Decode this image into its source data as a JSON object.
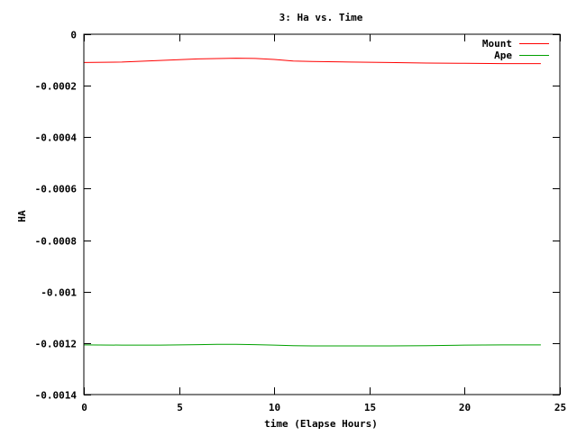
{
  "chart_data": {
    "type": "line",
    "title": "3: Ha vs. Time",
    "xlabel": "time (Elapse Hours)",
    "ylabel": "HA",
    "xlim": [
      0,
      25
    ],
    "ylim": [
      -0.0014,
      0
    ],
    "xticks": [
      0,
      5,
      10,
      15,
      20,
      25
    ],
    "xtick_labels": [
      "0",
      "5",
      "10",
      "15",
      "20",
      "25"
    ],
    "yticks": [
      0,
      -0.0002,
      -0.0004,
      -0.0006,
      -0.0008,
      -0.001,
      -0.0012,
      -0.0014
    ],
    "ytick_labels": [
      "0",
      "-0.0002",
      "-0.0004",
      "-0.0006",
      "-0.0008",
      "-0.001",
      "-0.0012",
      "-0.0014"
    ],
    "grid": false,
    "legend_position": "top-right",
    "series": [
      {
        "name": "Mount",
        "color": "#ff0000",
        "x": [
          0,
          2,
          4,
          6,
          8,
          9,
          10,
          11,
          12,
          14,
          16,
          18,
          20,
          22,
          24
        ],
        "y": [
          -0.00011,
          -0.000108,
          -0.000102,
          -9.6e-05,
          -9.3e-05,
          -9.4e-05,
          -9.8e-05,
          -0.000104,
          -0.000106,
          -0.000108,
          -0.00011,
          -0.000112,
          -0.000113,
          -0.000114,
          -0.000114
        ]
      },
      {
        "name": "Ape",
        "color": "#00a000",
        "x": [
          0,
          2,
          4,
          6,
          7,
          8,
          9,
          10,
          11,
          12,
          14,
          16,
          18,
          20,
          22,
          24
        ],
        "y": [
          -0.001207,
          -0.001208,
          -0.001208,
          -0.001206,
          -0.001205,
          -0.001205,
          -0.001206,
          -0.001208,
          -0.00121,
          -0.001211,
          -0.001211,
          -0.001211,
          -0.00121,
          -0.001208,
          -0.001207,
          -0.001207
        ]
      }
    ]
  }
}
